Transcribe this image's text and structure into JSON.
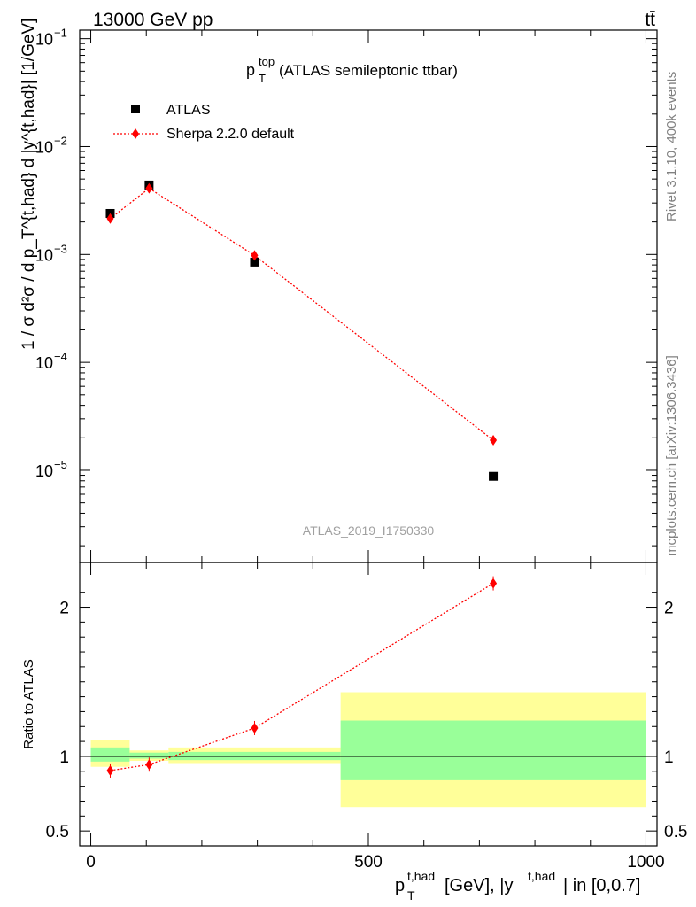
{
  "header": {
    "process": "13000 GeV pp",
    "final_state": "tt̄",
    "analysis_id": "ATLAS_2019_I1750330",
    "rivet_info": "Rivet 3.1.10,  400k events",
    "source_info": "mcplots.cern.ch [arXiv:1306.3436]"
  },
  "chart_data": [
    {
      "panel": "main",
      "type": "scatter",
      "title_main": "p",
      "title_sup": "top",
      "title_sub": "T",
      "title_rest": " (ATLAS semileptonic ttbar)",
      "ylabel": "1 / σ d²σ / d p_T^{t,had} d |y^{t,had}| [1/GeV]",
      "yscale": "log",
      "ylim": [
        1.4e-06,
        0.12
      ],
      "xlim": [
        -20,
        1020
      ],
      "y_ticks": [
        {
          "value": 0.1,
          "base": "10",
          "exp": "−1"
        },
        {
          "value": 0.01,
          "base": "10",
          "exp": "−2"
        },
        {
          "value": 0.001,
          "base": "10",
          "exp": "−3"
        },
        {
          "value": 0.0001,
          "base": "10",
          "exp": "−4"
        },
        {
          "value": 1e-05,
          "base": "10",
          "exp": "−5"
        }
      ],
      "legend": {
        "position": "top-left",
        "entries": [
          "ATLAS",
          "Sherpa 2.2.0 default"
        ]
      },
      "series": [
        {
          "name": "ATLAS",
          "marker": "square",
          "color": "#000000",
          "x": [
            35,
            105,
            295,
            725
          ],
          "y": [
            0.0024,
            0.0044,
            0.00085,
            8.8e-06
          ]
        },
        {
          "name": "Sherpa 2.2.0 default",
          "marker": "diamond",
          "line": "dotted",
          "color": "#ff0000",
          "x": [
            35,
            105,
            295,
            725
          ],
          "y": [
            0.00215,
            0.0041,
            0.00098,
            1.9e-05
          ]
        }
      ]
    },
    {
      "panel": "ratio",
      "type": "scatter",
      "ylabel": "Ratio to ATLAS",
      "xlabel_main": "p",
      "xlabel_sup": "t,had",
      "xlabel_sub": "T",
      "xlabel_rest": " [GeV], |y",
      "xlabel_sup2": "t,had",
      "xlabel_tail": "| in [0,0.7]",
      "ylim": [
        0.4,
        2.3
      ],
      "xlim": [
        -20,
        1020
      ],
      "x_ticks": [
        0,
        500,
        1000
      ],
      "y_ticks": [
        0.5,
        1,
        2
      ],
      "bins": [
        {
          "x0": 0,
          "x1": 70,
          "inner_lo": 0.965,
          "inner_hi": 1.06,
          "outer_lo": 0.93,
          "outer_hi": 1.11
        },
        {
          "x0": 70,
          "x1": 140,
          "inner_lo": 0.985,
          "inner_hi": 1.025,
          "outer_lo": 0.97,
          "outer_hi": 1.04
        },
        {
          "x0": 140,
          "x1": 450,
          "inner_lo": 0.975,
          "inner_hi": 1.03,
          "outer_lo": 0.955,
          "outer_hi": 1.06
        },
        {
          "x0": 450,
          "x1": 1000,
          "inner_lo": 0.84,
          "inner_hi": 1.24,
          "outer_lo": 0.66,
          "outer_hi": 1.43
        }
      ],
      "series": [
        {
          "name": "Sherpa 2.2.0 default",
          "marker": "diamond",
          "line": "dotted",
          "color": "#ff0000",
          "x": [
            35,
            105,
            295,
            725
          ],
          "y": [
            0.905,
            0.945,
            1.19,
            2.16
          ]
        }
      ]
    }
  ],
  "colors": {
    "band_inner": "#99ff99",
    "band_outer": "#ffff99",
    "reference_line": "#000000",
    "side_text": "#808080"
  }
}
